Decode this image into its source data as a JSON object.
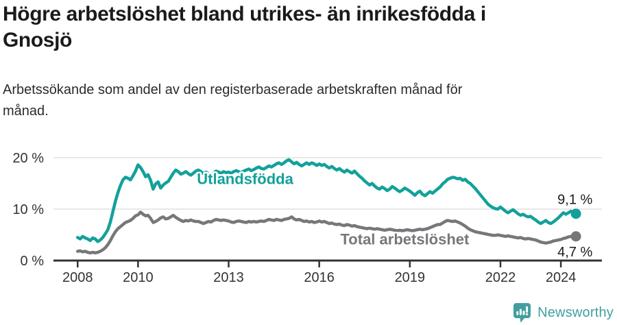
{
  "header": {
    "title_lines": [
      "Högre arbetslöshet bland utrikes- än inrikesfödda i",
      "Gnosjö"
    ],
    "subtitle_lines": [
      "Arbetssökande som andel av den registerbaserade arbetskraften månad för",
      "månad."
    ]
  },
  "footer": {
    "brand": "Newsworthy",
    "logo_icon": "newsworthy-speech-bubble-bar-chart-icon",
    "brand_color": "#429f9f"
  },
  "colors": {
    "accent_teal": "#12a19a",
    "neutral_gray": "#77777b",
    "axis": "#333333",
    "gridline": "#e0e0e0",
    "text_dark": "#1a1a1a"
  },
  "chart_data": {
    "type": "line",
    "title": "Högre arbetslöshet bland utrikes- än inrikesfödda i Gnosjö",
    "subtitle": "Arbetssökande som andel av den registerbaserade arbetskraften månad för månad.",
    "xlabel": "",
    "ylabel": "",
    "grid": "horizontal",
    "xlim": [
      2007.2,
      2025.36
    ],
    "ylim": [
      0,
      21.6
    ],
    "x_ticks": [
      2008,
      2010,
      2013,
      2016,
      2019,
      2022,
      2024
    ],
    "x_tick_labels": [
      "2008",
      "2010",
      "2013",
      "2016",
      "2019",
      "2022",
      "2024"
    ],
    "y_ticks": [
      0,
      10,
      20
    ],
    "y_tick_labels": [
      "0 %",
      "10 %",
      "20 %"
    ],
    "x_unit": "year_monthly",
    "series": [
      {
        "id": "utlandsfodda",
        "name": "Utlandsfödda",
        "color": "#12a19a",
        "start_year": 2008.0,
        "points_per_year": 12,
        "end_label": "9,1 %",
        "end_value": 9.1,
        "label_anchor": {
          "x": 2011.95,
          "y": 14.9
        },
        "end_label_anchor": {
          "x": 2025.05,
          "y": 11.0
        },
        "values": [
          4.5,
          4.2,
          4.7,
          4.4,
          4.2,
          3.9,
          4.4,
          4.2,
          3.7,
          4.0,
          4.5,
          5.2,
          6.0,
          7.5,
          9.5,
          11.5,
          13.2,
          14.6,
          15.7,
          16.2,
          16.0,
          15.7,
          16.5,
          17.4,
          18.6,
          18.1,
          17.3,
          16.3,
          16.7,
          15.6,
          13.9,
          14.9,
          15.3,
          14.1,
          14.7,
          15.1,
          15.4,
          16.2,
          17.0,
          17.6,
          17.3,
          16.8,
          17.0,
          17.3,
          16.9,
          16.6,
          17.0,
          17.4,
          17.6,
          17.3,
          16.9,
          17.2,
          16.9,
          16.7,
          17.0,
          17.4,
          17.2,
          17.0,
          17.3,
          17.1,
          17.2,
          17.0,
          17.3,
          17.5,
          17.3,
          17.1,
          17.4,
          17.6,
          17.8,
          17.5,
          17.7,
          18.0,
          18.2,
          17.9,
          17.8,
          18.1,
          18.4,
          18.2,
          18.5,
          18.8,
          19.0,
          18.7,
          19.0,
          19.4,
          19.6,
          19.2,
          18.8,
          19.1,
          18.7,
          18.4,
          18.7,
          19.0,
          18.7,
          19.0,
          18.8,
          18.5,
          18.8,
          18.5,
          18.7,
          18.3,
          18.0,
          18.3,
          17.9,
          17.6,
          17.9,
          17.5,
          17.2,
          17.6,
          17.3,
          17.0,
          17.4,
          16.9,
          16.4,
          16.0,
          15.5,
          15.1,
          14.7,
          15.0,
          14.5,
          14.1,
          13.9,
          14.3,
          14.0,
          13.6,
          13.9,
          14.4,
          14.1,
          13.7,
          13.4,
          13.7,
          14.1,
          13.8,
          13.5,
          13.1,
          12.7,
          13.2,
          13.5,
          12.9,
          12.6,
          13.0,
          13.4,
          13.1,
          13.5,
          13.9,
          14.3,
          14.9,
          15.3,
          15.8,
          16.0,
          16.2,
          16.1,
          15.9,
          16.0,
          15.6,
          15.8,
          15.3,
          15.0,
          14.5,
          14.0,
          13.4,
          12.8,
          12.2,
          11.6,
          11.0,
          10.6,
          10.3,
          10.1,
          10.0,
          10.4,
          10.0,
          9.6,
          9.3,
          9.6,
          9.9,
          9.5,
          9.1,
          8.8,
          9.0,
          8.7,
          8.5,
          8.6,
          8.2,
          7.9,
          7.5,
          7.2,
          7.5,
          7.8,
          7.4,
          7.2,
          7.5,
          7.9,
          8.3,
          8.8,
          9.3,
          9.0,
          9.3,
          9.6,
          9.3,
          9.1
        ]
      },
      {
        "id": "total",
        "name": "Total arbetslöshet",
        "color": "#77777b",
        "start_year": 2008.0,
        "points_per_year": 12,
        "end_label": "4,7 %",
        "end_value": 4.7,
        "label_anchor": {
          "x": 2016.7,
          "y": 3.15
        },
        "end_label_anchor": {
          "x": 2025.05,
          "y": 0.8
        },
        "values": [
          1.8,
          1.9,
          1.7,
          1.8,
          1.6,
          1.5,
          1.6,
          1.5,
          1.6,
          1.8,
          2.1,
          2.5,
          3.1,
          3.9,
          4.8,
          5.6,
          6.2,
          6.6,
          7.0,
          7.4,
          7.6,
          7.8,
          8.2,
          8.7,
          8.9,
          9.4,
          9.0,
          8.7,
          8.8,
          8.2,
          7.4,
          7.6,
          7.9,
          8.3,
          8.5,
          8.1,
          8.2,
          8.5,
          8.8,
          8.4,
          8.1,
          7.8,
          7.6,
          7.8,
          7.7,
          7.9,
          7.7,
          7.6,
          7.6,
          7.4,
          7.2,
          7.4,
          7.6,
          7.5,
          7.8,
          8.0,
          7.9,
          7.8,
          7.9,
          7.8,
          7.7,
          7.5,
          7.4,
          7.6,
          7.7,
          7.6,
          7.5,
          7.4,
          7.6,
          7.5,
          7.6,
          7.5,
          7.6,
          7.7,
          7.6,
          7.8,
          8.0,
          7.9,
          7.8,
          8.0,
          7.9,
          7.8,
          8.0,
          8.1,
          8.2,
          8.5,
          8.1,
          7.9,
          8.0,
          7.8,
          7.6,
          7.7,
          7.5,
          7.6,
          7.4,
          7.5,
          7.7,
          7.5,
          7.6,
          7.4,
          7.2,
          7.3,
          7.1,
          7.0,
          7.1,
          6.9,
          6.8,
          7.0,
          6.9,
          6.7,
          6.8,
          6.6,
          6.5,
          6.4,
          6.3,
          6.2,
          6.3,
          6.2,
          6.1,
          6.2,
          6.1,
          6.0,
          5.9,
          6.0,
          6.1,
          6.0,
          5.9,
          5.8,
          5.9,
          5.8,
          5.9,
          6.0,
          5.9,
          5.8,
          5.9,
          6.0,
          6.1,
          6.0,
          6.1,
          6.2,
          6.4,
          6.6,
          6.8,
          7.0,
          7.0,
          7.3,
          7.6,
          7.8,
          7.7,
          7.6,
          7.7,
          7.5,
          7.3,
          7.0,
          6.7,
          6.3,
          6.0,
          5.8,
          5.6,
          5.5,
          5.4,
          5.3,
          5.2,
          5.1,
          5.0,
          4.9,
          4.9,
          5.0,
          4.9,
          4.8,
          4.7,
          4.8,
          4.7,
          4.6,
          4.5,
          4.4,
          4.5,
          4.3,
          4.2,
          4.3,
          4.2,
          4.1,
          4.0,
          3.8,
          3.6,
          3.5,
          3.4,
          3.5,
          3.6,
          3.8,
          3.9,
          4.0,
          4.1,
          4.3,
          4.4,
          4.6,
          4.7,
          4.6,
          4.7
        ]
      }
    ]
  }
}
